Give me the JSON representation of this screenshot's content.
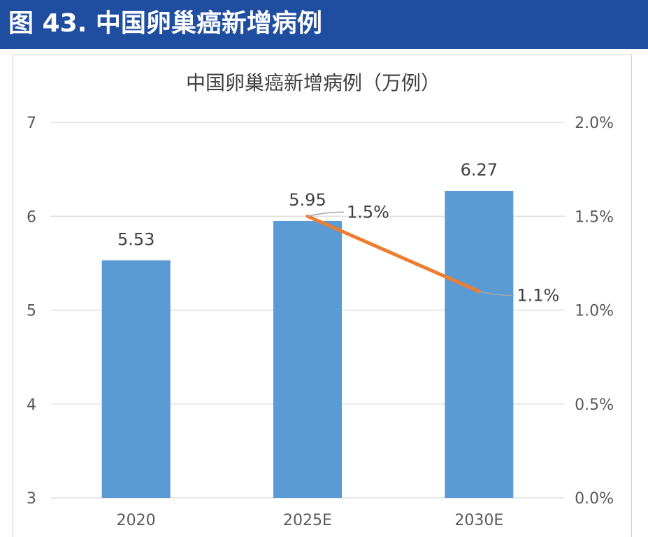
{
  "header": {
    "title": "图 43. 中国卵巢癌新增病例"
  },
  "colors": {
    "banner": "#1f4ea1",
    "bar": "#5b9bd5",
    "line": "#ed7d31",
    "grid": "#d9d9d9"
  },
  "chart_data": {
    "type": "bar",
    "title": "中国卵巢癌新增病例（万例）",
    "categories": [
      "2020",
      "2025E",
      "2030E"
    ],
    "series": [
      {
        "type": "bar",
        "axis": "left",
        "values": [
          5.53,
          5.95,
          6.27
        ]
      },
      {
        "type": "line",
        "axis": "right",
        "values": [
          null,
          0.015,
          0.011
        ],
        "labels": [
          "",
          "1.5%",
          "1.1%"
        ]
      }
    ],
    "bar_labels": [
      "5.53",
      "5.95",
      "6.27"
    ],
    "y_left": {
      "min": 3,
      "max": 7,
      "ticks": [
        "3",
        "4",
        "5",
        "6",
        "7"
      ]
    },
    "y_right": {
      "min": 0,
      "max": 0.02,
      "ticks": [
        "0.0%",
        "0.5%",
        "1.0%",
        "1.5%",
        "2.0%"
      ]
    },
    "grid": true
  }
}
